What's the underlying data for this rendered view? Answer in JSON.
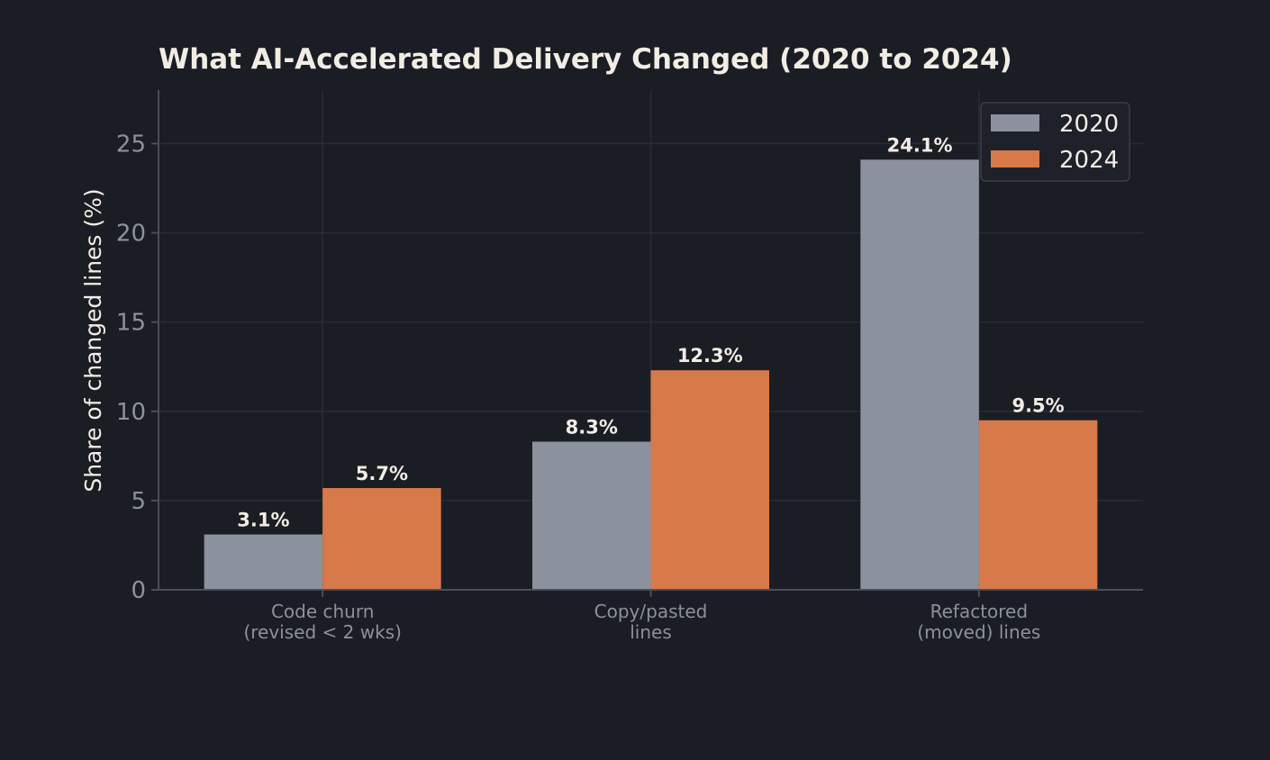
{
  "chart_data": {
    "type": "bar",
    "title": "What AI-Accelerated Delivery Changed (2020 to 2024)",
    "ylabel": "Share of changed lines (%)",
    "xlabel": "",
    "categories": [
      [
        "Code churn",
        "(revised < 2 wks)"
      ],
      [
        "Copy/pasted",
        "lines"
      ],
      [
        "Refactored",
        "(moved) lines"
      ]
    ],
    "series": [
      {
        "name": "2020",
        "values": [
          3.1,
          8.3,
          24.1
        ],
        "labels": [
          "3.1%",
          "8.3%",
          "24.1%"
        ],
        "color": "#8c919e"
      },
      {
        "name": "2024",
        "values": [
          5.7,
          12.3,
          9.5
        ],
        "labels": [
          "5.7%",
          "12.3%",
          "9.5%"
        ],
        "color": "#d8794a"
      }
    ],
    "ylim": [
      0,
      28
    ],
    "yticks": [
      0,
      5,
      10,
      15,
      20,
      25
    ],
    "grid": true,
    "legend_position": "top-right",
    "colors": {
      "background": "#1b1d24",
      "grid": "#2a2d36",
      "axis": "#4a4e58",
      "tick_label": "#8c919e",
      "title": "#f2ede4",
      "value_label": "#f2ede4"
    }
  }
}
